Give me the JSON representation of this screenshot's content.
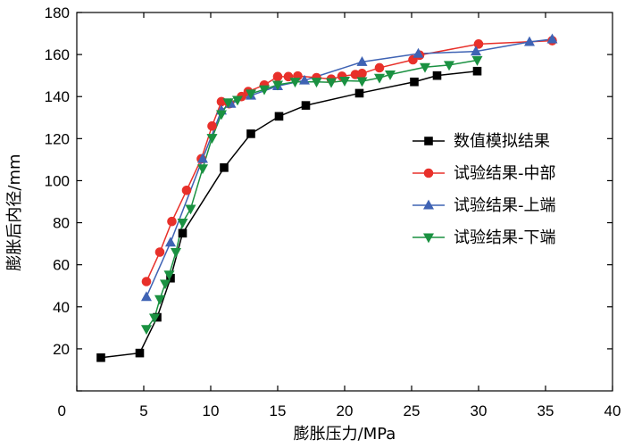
{
  "chart_data": {
    "type": "scatter",
    "title": "",
    "xlabel": "膨胀压力/MPa",
    "ylabel": "膨胀后内径/mm",
    "xlim": [
      0,
      40
    ],
    "ylim": [
      0,
      180
    ],
    "xticks": [
      0,
      5,
      10,
      15,
      20,
      25,
      30,
      35,
      40
    ],
    "yticks": [
      0,
      20,
      40,
      60,
      80,
      100,
      120,
      140,
      160,
      180
    ],
    "xtick_labels": [
      "0",
      "5",
      "10",
      "15",
      "20",
      "25",
      "30",
      "35",
      "40"
    ],
    "ytick_labels": [
      "",
      "20",
      "40",
      "60",
      "80",
      "100",
      "120",
      "140",
      "160",
      "180"
    ],
    "grid": false,
    "legend_position": "center-right",
    "series": [
      {
        "name": "数值模拟结果",
        "color": "#000000",
        "marker": "square",
        "x": [
          1.8,
          4.7,
          6.0,
          7.0,
          7.9,
          11.0,
          13.0,
          15.1,
          17.1,
          21.1,
          25.2,
          26.9,
          29.9
        ],
        "y": [
          15.8,
          18.0,
          35.0,
          53.6,
          75.0,
          106.2,
          122.3,
          130.6,
          135.8,
          141.6,
          147.0,
          150.0,
          152.1
        ]
      },
      {
        "name": "试验结果-中部",
        "color": "#e8302a",
        "marker": "circle",
        "x": [
          5.2,
          6.2,
          7.1,
          8.2,
          9.3,
          10.1,
          10.8,
          11.4,
          12.3,
          12.8,
          14.0,
          15.0,
          15.8,
          16.5,
          17.9,
          19.0,
          19.8,
          20.8,
          21.3,
          22.6,
          25.1,
          25.6,
          30.0,
          35.5
        ],
        "y": [
          52.0,
          66.0,
          80.6,
          95.4,
          110.4,
          126.0,
          137.6,
          136.6,
          140.0,
          142.4,
          145.5,
          149.5,
          149.5,
          149.8,
          149.0,
          148.3,
          149.7,
          150.5,
          151.0,
          153.7,
          157.5,
          159.7,
          165.0,
          166.6
        ]
      },
      {
        "name": "试验结果-上端",
        "color": "#3f63b4",
        "marker": "triangle-up",
        "x": [
          5.2,
          7.0,
          9.4,
          10.8,
          11.5,
          13.0,
          15.0,
          17.0,
          21.3,
          25.5,
          29.8,
          33.8,
          35.5
        ],
        "y": [
          44.7,
          70.6,
          110.4,
          133.4,
          136.6,
          140.5,
          145.0,
          147.7,
          156.5,
          160.4,
          161.5,
          166.0,
          167.3
        ]
      },
      {
        "name": "试验结果-下端",
        "color": "#1a9141",
        "marker": "triangle-down",
        "x": [
          5.2,
          5.8,
          6.2,
          6.6,
          6.9,
          7.4,
          7.9,
          8.5,
          9.4,
          10.1,
          10.8,
          11.3,
          12.0,
          13.0,
          14.0,
          15.0,
          16.3,
          17.9,
          19.0,
          20.0,
          21.3,
          22.6,
          23.4,
          26.0,
          27.8,
          29.9
        ],
        "y": [
          29.4,
          34.8,
          43.6,
          51.0,
          55.3,
          66.0,
          80.0,
          86.6,
          105.8,
          120.3,
          131.6,
          137.2,
          138.4,
          141.4,
          143.4,
          145.6,
          147.0,
          147.0,
          146.8,
          147.5,
          147.3,
          148.9,
          150.5,
          154.0,
          155.0,
          157.3
        ]
      }
    ]
  }
}
